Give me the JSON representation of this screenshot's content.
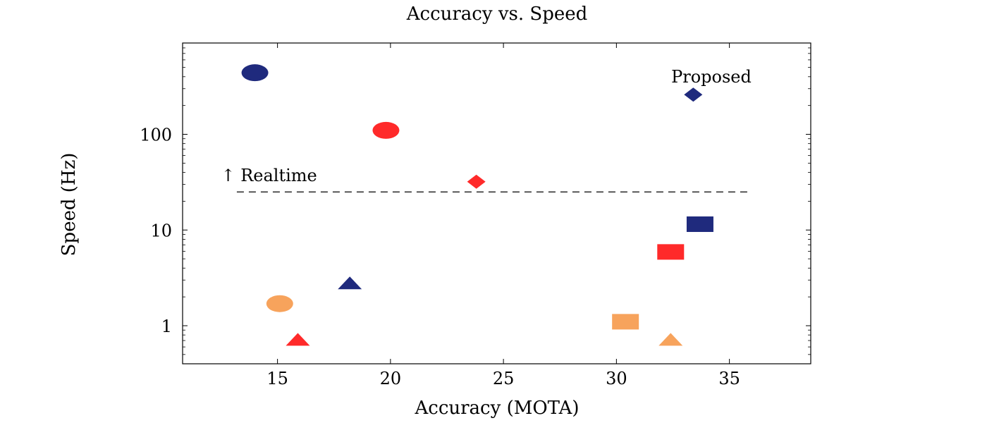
{
  "chart_data": {
    "type": "scatter",
    "title": "Accuracy vs. Speed",
    "xlabel": "Accuracy (MOTA)",
    "ylabel": "Speed (Hz)",
    "xlim": [
      10.8,
      38.6
    ],
    "ylim": [
      0.4,
      900
    ],
    "yscale": "log",
    "x_ticks": [
      15,
      20,
      25,
      30,
      35
    ],
    "y_ticks": [
      1,
      10,
      100
    ],
    "y_tick_labels": [
      "1",
      "10",
      "100"
    ],
    "grid": false,
    "legend": "none",
    "points": [
      {
        "x": 14.0,
        "y": 440,
        "shape": "circle",
        "color": "#1f2a7d"
      },
      {
        "x": 19.8,
        "y": 110,
        "shape": "circle",
        "color": "#ff2a2a"
      },
      {
        "x": 15.1,
        "y": 1.7,
        "shape": "circle",
        "color": "#f7a35c"
      },
      {
        "x": 18.2,
        "y": 2.8,
        "shape": "triangle",
        "color": "#1f2a7d"
      },
      {
        "x": 15.9,
        "y": 0.72,
        "shape": "triangle",
        "color": "#ff2a2a"
      },
      {
        "x": 32.4,
        "y": 0.72,
        "shape": "triangle",
        "color": "#f7a35c"
      },
      {
        "x": 33.4,
        "y": 260,
        "shape": "diamond",
        "color": "#1f2a7d"
      },
      {
        "x": 23.8,
        "y": 32,
        "shape": "diamond",
        "color": "#ff2a2a"
      },
      {
        "x": 33.7,
        "y": 11.5,
        "shape": "square",
        "color": "#1f2a7d"
      },
      {
        "x": 32.4,
        "y": 5.9,
        "shape": "square",
        "color": "#ff2a2a"
      },
      {
        "x": 30.4,
        "y": 1.1,
        "shape": "square",
        "color": "#f7a35c"
      }
    ],
    "annotations": [
      {
        "text": "Proposed",
        "x": 34.2,
        "y": 400
      },
      {
        "text": "↑ Realtime",
        "x": 12.5,
        "y": 37
      }
    ],
    "reference_line": {
      "y": 25,
      "x_start": 13.2,
      "x_end": 36.0,
      "style": "dashed",
      "label": "↑ Realtime"
    }
  }
}
